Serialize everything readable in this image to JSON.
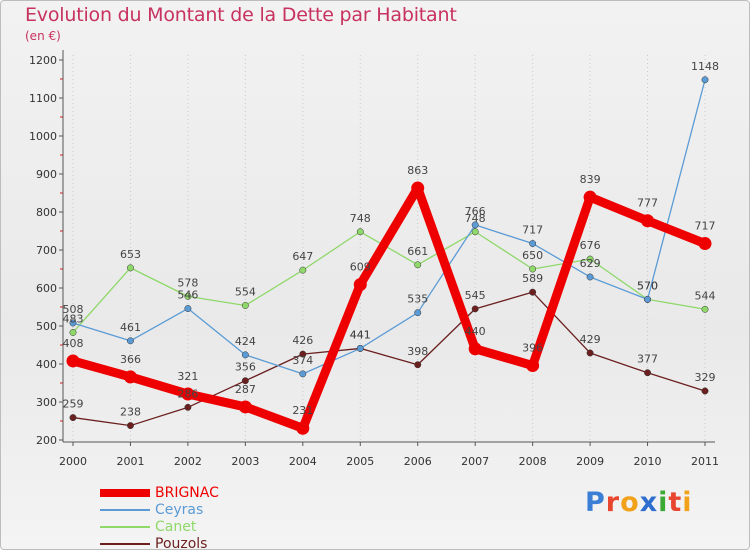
{
  "header": {
    "title": "Evolution du Montant de la Dette par Habitant",
    "subtitle": "(en €)"
  },
  "logo": {
    "text": "Proxiti",
    "letter_colors": [
      "#3a7fd5",
      "#e8462e",
      "#f2a21a",
      "#2d6ecf",
      "#3aaa35",
      "#e8462e",
      "#f2a21a"
    ]
  },
  "chart_data": {
    "type": "line",
    "title": "Evolution du Montant de la Dette par Habitant",
    "subtitle": "(en €)",
    "xlabel": "",
    "ylabel": "",
    "x": [
      "2000",
      "2001",
      "2002",
      "2003",
      "2004",
      "2005",
      "2006",
      "2007",
      "2008",
      "2009",
      "2010",
      "2011"
    ],
    "ylim": [
      200,
      1200
    ],
    "yticks": [
      "200",
      "300",
      "400",
      "500",
      "600",
      "700",
      "800",
      "900",
      "1000",
      "1100",
      "1200"
    ],
    "grid": "vertical",
    "legend_position": "bottom-left",
    "series": [
      {
        "name": "BRIGNAC",
        "color": "#ee0000",
        "values": [
          408,
          366,
          321,
          287,
          231,
          609,
          863,
          440,
          396,
          839,
          777,
          717
        ]
      },
      {
        "name": "Ceyras",
        "color": "#5b9bd5",
        "values": [
          508,
          461,
          546,
          424,
          374,
          441,
          535,
          766,
          717,
          629,
          570,
          1148
        ]
      },
      {
        "name": "Canet",
        "color": "#8fd86a",
        "values": [
          483,
          653,
          578,
          554,
          647,
          748,
          661,
          748,
          650,
          676,
          570,
          544
        ]
      },
      {
        "name": "Pouzols",
        "color": "#6b1f1f",
        "values": [
          259,
          238,
          286,
          356,
          426,
          441,
          398,
          545,
          589,
          429,
          377,
          329
        ]
      }
    ]
  }
}
